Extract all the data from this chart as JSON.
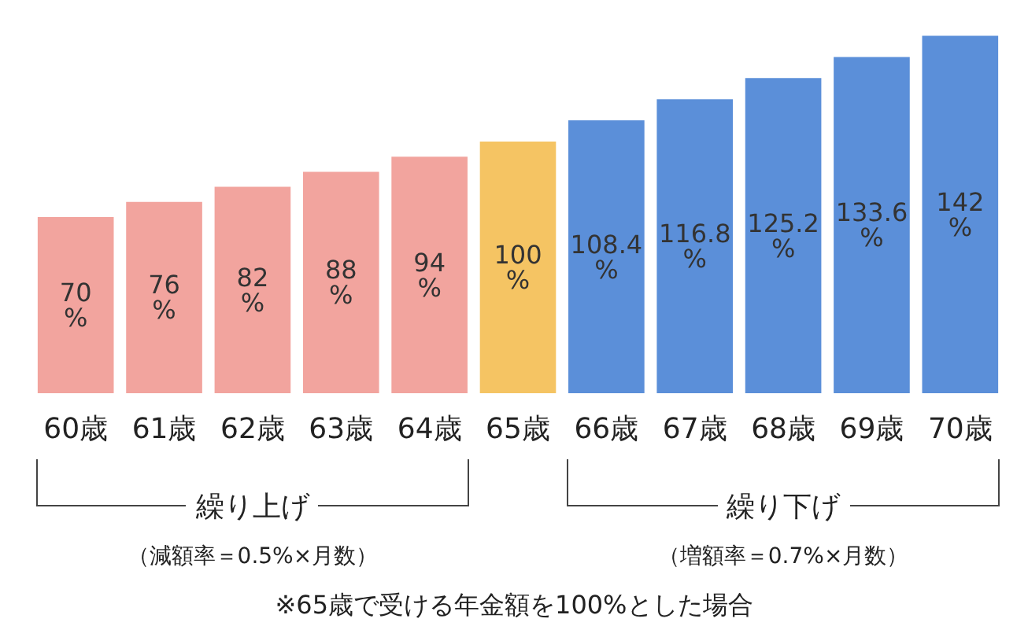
{
  "chart_data": {
    "type": "bar",
    "categories": [
      "60歳",
      "61歳",
      "62歳",
      "63歳",
      "64歳",
      "65歳",
      "66歳",
      "67歳",
      "68歳",
      "69歳",
      "70歳"
    ],
    "values": [
      70,
      76,
      82,
      88,
      94,
      100,
      108.4,
      116.8,
      125.2,
      133.6,
      142
    ],
    "value_labels": [
      "70%",
      "76%",
      "82%",
      "88%",
      "94%",
      "100%",
      "108.4%",
      "116.8%",
      "125.2%",
      "133.6%",
      "142%"
    ],
    "colors": [
      "#f2a49e",
      "#f2a49e",
      "#f2a49e",
      "#f2a49e",
      "#f2a49e",
      "#f5c463",
      "#5b8fd9",
      "#5b8fd9",
      "#5b8fd9",
      "#5b8fd9",
      "#5b8fd9"
    ],
    "annotations": [
      "繰り上げ",
      "繰り下げ",
      "（減額率＝0.5%×月数）",
      "（増額率＝0.7%×月数）",
      "※65歳で受ける年金額を100%とした場合"
    ]
  }
}
